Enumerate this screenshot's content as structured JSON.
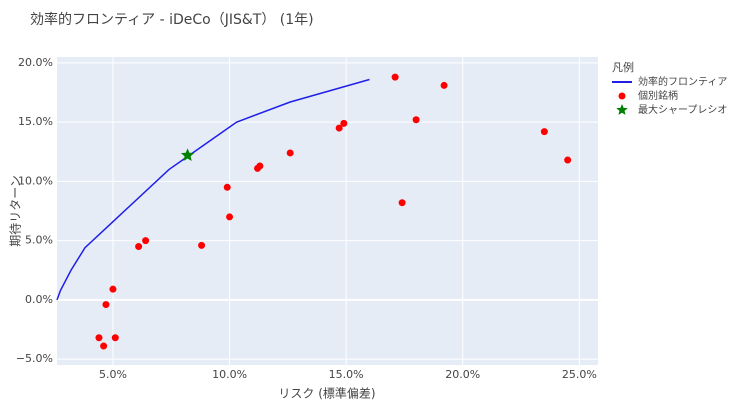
{
  "chart_data": {
    "type": "scatter",
    "title": "効率的フロンティア - iDeCo（JIS&T） (1年)",
    "x_label": "リスク (標準偏差)",
    "y_label": "期待リターン",
    "legend_title": "凡例",
    "grid": true,
    "xlim": [
      2.6,
      25.8
    ],
    "ylim": [
      -5.5,
      20.5
    ],
    "xticks": [
      {
        "value": 5,
        "label": "5.0%"
      },
      {
        "value": 10,
        "label": "10.0%"
      },
      {
        "value": 15,
        "label": "15.0%"
      },
      {
        "value": 20,
        "label": "20.0%"
      },
      {
        "value": 25,
        "label": "25.0%"
      }
    ],
    "yticks": [
      {
        "value": -5,
        "label": "−5.0%"
      },
      {
        "value": 0,
        "label": "0.0%"
      },
      {
        "value": 5,
        "label": "5.0%"
      },
      {
        "value": 10,
        "label": "10.0%"
      },
      {
        "value": 15,
        "label": "15.0%"
      },
      {
        "value": 20,
        "label": "20.0%"
      }
    ],
    "series": [
      {
        "name": "効率的フロンティア",
        "mode": "lines",
        "color": "#1f1fe8",
        "x": [
          2.6,
          2.75,
          3.2,
          3.8,
          5.0,
          7.4,
          8.2,
          10.3,
          12.6,
          16.0
        ],
        "values": [
          0,
          0.8,
          2.5,
          4.4,
          6.6,
          11.0,
          12.1,
          15.0,
          16.7,
          18.6
        ]
      },
      {
        "name": "個別銘柄",
        "mode": "markers",
        "color": "#ff0000",
        "x": [
          4.4,
          4.6,
          5.1,
          4.7,
          5.0,
          6.1,
          6.4,
          8.8,
          9.9,
          10.0,
          11.2,
          11.3,
          12.6,
          14.7,
          14.9,
          17.1,
          17.4,
          18.0,
          19.2,
          23.5,
          24.5
        ],
        "values": [
          -3.2,
          -3.9,
          -3.2,
          -0.4,
          0.9,
          4.5,
          5.0,
          4.6,
          9.5,
          7.0,
          11.1,
          11.3,
          12.4,
          14.5,
          14.9,
          18.8,
          8.2,
          15.2,
          18.1,
          14.2,
          11.8
        ]
      },
      {
        "name": "最大シャープレシオ",
        "mode": "star",
        "color": "#008000",
        "x": [
          8.2
        ],
        "values": [
          12.2
        ]
      }
    ]
  }
}
